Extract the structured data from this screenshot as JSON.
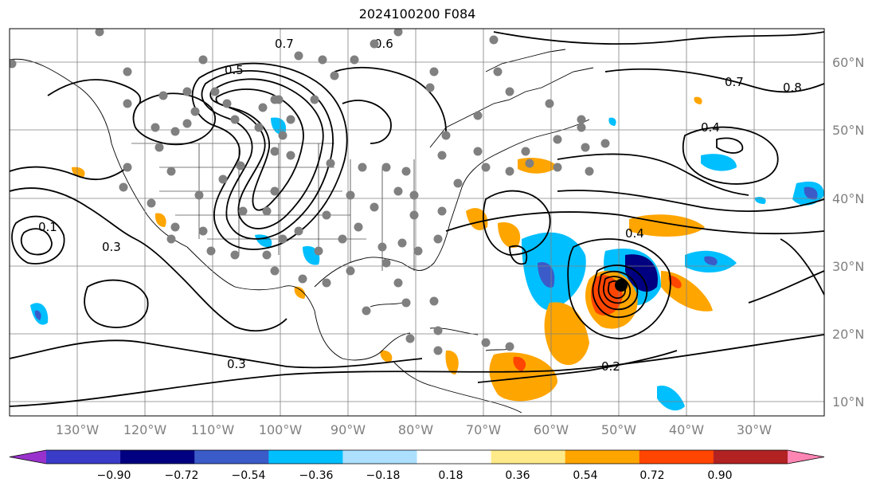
{
  "title": "2024100200 F084",
  "map": {
    "projection": "lat-lon",
    "lon_range": [
      -138,
      -17
    ],
    "lat_range": [
      7,
      65
    ],
    "grid": true,
    "lon_ticks": [
      "130°W",
      "120°W",
      "110°W",
      "100°W",
      "90°W",
      "80°W",
      "70°W",
      "60°W",
      "50°W",
      "40°W",
      "30°W"
    ],
    "lat_ticks": [
      "60°N",
      "50°N",
      "40°N",
      "30°N",
      "20°N",
      "10°N"
    ],
    "contour_labels": [
      "0.5",
      "0.7",
      "0.6",
      "0.4",
      "0.3",
      "0.2",
      "0.1",
      "0.8",
      "0.4",
      "0.7",
      "0.3"
    ],
    "colors": {
      "stipple": "#808080",
      "contour": "#000000",
      "land_outline": "#000000"
    }
  },
  "colorbar": {
    "ticks": [
      "−0.90",
      "−0.72",
      "−0.54",
      "−0.36",
      "−0.18",
      "0.18",
      "0.36",
      "0.54",
      "0.72",
      "0.90"
    ],
    "colors": [
      "#9932CC",
      "#3A3CC8",
      "#000080",
      "#3B5BC9",
      "#00BFFF",
      "#ADDFFF",
      "#FFFFFF",
      "#FFEA8A",
      "#FFA500",
      "#FF4500",
      "#B22222",
      "#FF85B3"
    ],
    "extend": "both"
  }
}
